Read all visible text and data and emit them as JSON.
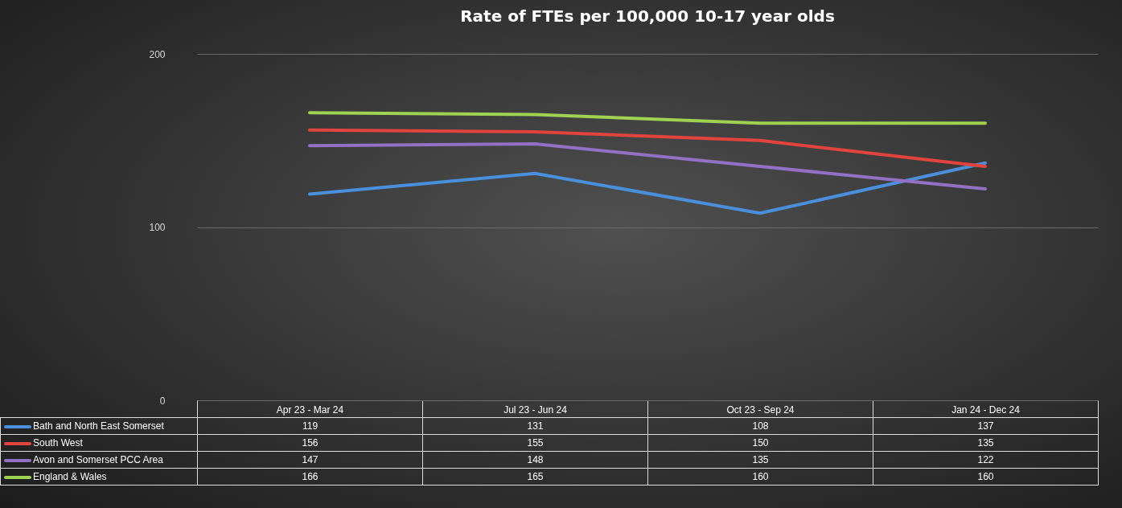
{
  "chart_data": {
    "type": "line",
    "title": "Rate of FTEs per 100,000 10-17 year olds",
    "categories": [
      "Apr 23 - Mar 24",
      "Jul 23 - Jun 24",
      "Oct 23 - Sep 24",
      "Jan 24 - Dec 24"
    ],
    "series": [
      {
        "name": "Bath and North East Somerset",
        "color": "#4a8fdc",
        "values": [
          119,
          131,
          108,
          137
        ]
      },
      {
        "name": "South West",
        "color": "#e0443c",
        "values": [
          156,
          155,
          150,
          135
        ]
      },
      {
        "name": "Avon and Somerset PCC Area",
        "color": "#9470c4",
        "values": [
          147,
          148,
          135,
          122
        ]
      },
      {
        "name": "England & Wales",
        "color": "#9fd153",
        "values": [
          166,
          165,
          160,
          160
        ]
      }
    ],
    "ylim": [
      0,
      200
    ],
    "yticks": [
      0,
      100,
      200
    ],
    "grid": "y",
    "legend": "bottom left",
    "data_labels": true
  }
}
